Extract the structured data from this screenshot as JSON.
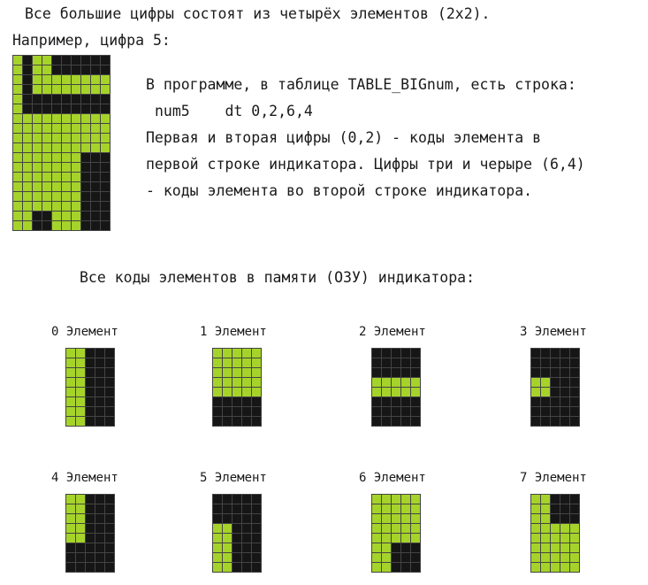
{
  "colors": {
    "lit": "#a6d32a",
    "unlit": "#161616"
  },
  "header": {
    "line1": "Все большие цифры состоят из четырёх элементов (2x2).",
    "line2": "Например, цифра 5:"
  },
  "explanation": {
    "line1": "В программе, в таблице TABLE_BIGnum, есть строка:",
    "line2": "num5    dt 0,2,6,4",
    "line3": "Первая и вторая цифры (0,2) - коды элемента в",
    "line4": "первой строке индикатора. Цифры три и черыре (6,4)",
    "line5": "- коды элемента во второй строке индикатора."
  },
  "section_title": "Все коды элементов в памяти (ОЗУ) индикатора:",
  "big_digit": {
    "rows": [
      "0100111111",
      "0100111111",
      "0100000000",
      "0100000000",
      "0111111111",
      "0111111111",
      "0000000000",
      "0000000000",
      "0000000000",
      "0000000000",
      "0000000111",
      "0000000111",
      "0000000111",
      "0000000111",
      "0000000111",
      "0000000111",
      "0011000111",
      "0011000111"
    ]
  },
  "elements": [
    {
      "label": "0 Элемент",
      "rows": [
        "00111",
        "00111",
        "00111",
        "00111",
        "00111",
        "00111",
        "00111",
        "00111"
      ]
    },
    {
      "label": "1 Элемент",
      "rows": [
        "00000",
        "00000",
        "00000",
        "00000",
        "00000",
        "11111",
        "11111",
        "11111"
      ]
    },
    {
      "label": "2 Элемент",
      "rows": [
        "11111",
        "11111",
        "11111",
        "00000",
        "00000",
        "11111",
        "11111",
        "11111"
      ]
    },
    {
      "label": "3 Элемент",
      "rows": [
        "11111",
        "11111",
        "11111",
        "00111",
        "00111",
        "11111",
        "11111",
        "11111"
      ]
    },
    {
      "label": "4 Элемент",
      "rows": [
        "00111",
        "00111",
        "00111",
        "00111",
        "00111",
        "11111",
        "11111",
        "11111"
      ]
    },
    {
      "label": "5 Элемент",
      "rows": [
        "11111",
        "11111",
        "11111",
        "00111",
        "00111",
        "00111",
        "00111",
        "00111"
      ]
    },
    {
      "label": "6 Элемент",
      "rows": [
        "00000",
        "00000",
        "00000",
        "00000",
        "00000",
        "00111",
        "00111",
        "00111"
      ]
    },
    {
      "label": "7 Элемент",
      "rows": [
        "00111",
        "00111",
        "00111",
        "00000",
        "00000",
        "00000",
        "00000",
        "00000"
      ]
    }
  ]
}
